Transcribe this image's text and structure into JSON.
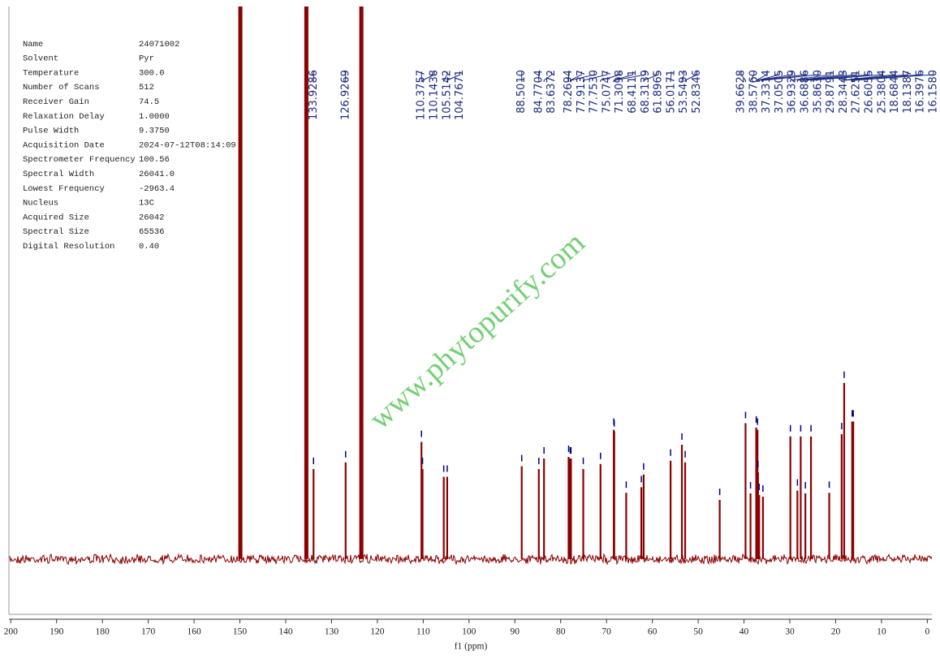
{
  "chart_data": {
    "type": "nmr",
    "parameters": [
      {
        "name": "Name",
        "value": "24071002"
      },
      {
        "name": "Solvent",
        "value": "Pyr"
      },
      {
        "name": "Temperature",
        "value": "300.0"
      },
      {
        "name": "Number of Scans",
        "value": "512"
      },
      {
        "name": "Receiver Gain",
        "value": "74.5"
      },
      {
        "name": "Relaxation Delay",
        "value": "1.0000"
      },
      {
        "name": "Pulse Width",
        "value": "9.3750"
      },
      {
        "name": "Acquisition Date",
        "value": "2024-07-12T08:14:09"
      },
      {
        "name": "Spectrometer Frequency",
        "value": "100.56"
      },
      {
        "name": "Spectral Width",
        "value": "26041.0"
      },
      {
        "name": "Lowest Frequency",
        "value": "-2963.4"
      },
      {
        "name": "Nucleus",
        "value": "13C"
      },
      {
        "name": "Acquired Size",
        "value": "26042"
      },
      {
        "name": "Spectral Size",
        "value": "65536"
      },
      {
        "name": "Digital Resolution",
        "value": "0.40"
      }
    ],
    "x_label": "f1 (ppm)",
    "watermark": "www.phytopurify.com",
    "xlim": [
      200.4,
      -1
    ],
    "xticks": [
      200,
      190,
      180,
      170,
      160,
      150,
      140,
      130,
      120,
      110,
      100,
      90,
      80,
      70,
      60,
      50,
      40,
      30,
      20,
      10,
      0
    ],
    "ylim": [
      -10,
      100
    ],
    "color": "#8b0000",
    "marker_color": "#00008b",
    "label_color": "#1a2a80",
    "peaks": {
      "x": [
        133.9286,
        126.9269,
        110.3757,
        110.1438,
        105.5142,
        104.7671,
        88.501,
        84.7704,
        83.6372,
        78.2694,
        77.9137,
        77.753,
        75.0747,
        71.3098,
        68.4111,
        68.3139,
        61.8965,
        56.0171,
        53.5493,
        52.8346,
        39.6628,
        38.576,
        37.3314,
        37.0505,
        36.9329,
        36.6886,
        35.863,
        29.8791,
        28.3443,
        27.6251,
        26.6055,
        25.3804,
        18.6844,
        18.1387,
        16.3976,
        16.158
      ],
      "x_labels": [
        "133.9286",
        "126.9269",
        "110.3757",
        "110.1438",
        "105.5142",
        "104.7671",
        "88.5010",
        "84.7704",
        "83.6372",
        "78.2694",
        "77.9137",
        "77.7530",
        "75.0747",
        "71.3098",
        "68.4111",
        "68.3139",
        "61.8965",
        "56.0171",
        "53.5493",
        "52.8346",
        "39.6628",
        "38.5760",
        "37.3314",
        "37.0505",
        "36.9329",
        "36.6886",
        "35.8630",
        "29.8791",
        "28.3443",
        "27.6251",
        "26.6055",
        "25.3804",
        "18.6844",
        "18.1387",
        "16.3976",
        "16.1580"
      ],
      "values": [
        16.3,
        17.5,
        21.2,
        16.3,
        14.9,
        14.9,
        16.8,
        16.3,
        18.2,
        18.5,
        18.2,
        18.2,
        16.3,
        17.2,
        23.4,
        23.1,
        15.3,
        17.8,
        20.7,
        17.5,
        24.6,
        11.9,
        23.8,
        23.4,
        15.7,
        11.6,
        11.3,
        22.2,
        12.4,
        22.2,
        11.9,
        22.2,
        22.6,
        31.9,
        24.9,
        24.9
      ]
    },
    "unlabeled_peaks": {
      "x": [
        65.7,
        62.4,
        45.3,
        21.4
      ],
      "values": [
        12,
        13,
        10.7,
        12
      ]
    },
    "solvent_peaks": {
      "x": [
        149.9,
        135.5,
        123.5
      ],
      "values": [
        100,
        100,
        100
      ]
    }
  }
}
